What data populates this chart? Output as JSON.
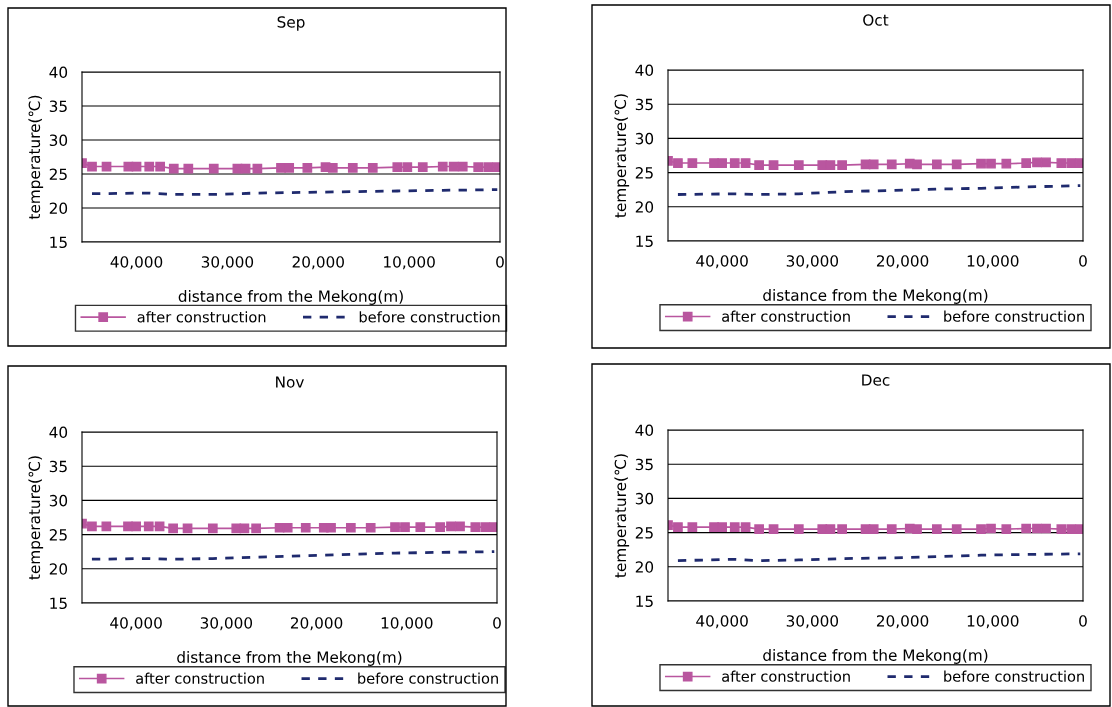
{
  "chart_data": [
    {
      "type": "line",
      "title": "Sep",
      "xlabel": "distance from the Mekong(m)",
      "ylabel": "temperature(℃)",
      "xlim": [
        46000,
        0
      ],
      "xticks": [
        {
          "value": 40000,
          "label": "40,000"
        },
        {
          "value": 30000,
          "label": "30,000"
        },
        {
          "value": 20000,
          "label": "20,000"
        },
        {
          "value": 10000,
          "label": "10,000"
        },
        0
      ],
      "ylim": [
        15,
        40
      ],
      "yticks": [
        15,
        20,
        25,
        30,
        35,
        40
      ],
      "grid": "y",
      "legend": "bottom",
      "series": [
        {
          "name": "after construction",
          "color": "#b9569f",
          "marker": "square",
          "line_style": "solid",
          "x": [
            46000,
            44900,
            43300,
            40900,
            40000,
            38600,
            37400,
            35900,
            34300,
            31500,
            28900,
            28000,
            26700,
            24100,
            23200,
            21200,
            19200,
            18400,
            16200,
            14000,
            11300,
            10200,
            8500,
            6300,
            5100,
            4100,
            2400,
            1300,
            300
          ],
          "values": [
            26.6,
            26.1,
            26.1,
            26.1,
            26.1,
            26.1,
            26.1,
            25.8,
            25.8,
            25.8,
            25.8,
            25.8,
            25.8,
            25.9,
            25.9,
            25.9,
            26.0,
            25.9,
            25.9,
            25.9,
            26.0,
            26.0,
            26.0,
            26.1,
            26.1,
            26.1,
            26.0,
            26.0,
            26.0
          ]
        },
        {
          "name": "before construction",
          "color": "#1f2a6e",
          "marker": "none",
          "line_style": "dashed",
          "x": [
            44900,
            38600,
            35900,
            31500,
            26700,
            21200,
            16200,
            11300,
            6300,
            300
          ],
          "values": [
            22.1,
            22.2,
            22.0,
            22.0,
            22.2,
            22.3,
            22.4,
            22.5,
            22.6,
            22.7
          ]
        }
      ]
    },
    {
      "type": "line",
      "title": "Oct",
      "xlabel": "distance from the Mekong(m)",
      "ylabel": "temperature(℃)",
      "xlim": [
        46000,
        0
      ],
      "xticks": [
        {
          "value": 40000,
          "label": "40,000"
        },
        {
          "value": 30000,
          "label": "30,000"
        },
        {
          "value": 20000,
          "label": "20,000"
        },
        {
          "value": 10000,
          "label": "10,000"
        },
        0
      ],
      "ylim": [
        15,
        40
      ],
      "yticks": [
        15,
        20,
        25,
        30,
        35,
        40
      ],
      "grid": "y",
      "legend": "bottom",
      "series": [
        {
          "name": "after construction",
          "color": "#b9569f",
          "marker": "square",
          "line_style": "solid",
          "x": [
            46000,
            44900,
            43300,
            40900,
            40000,
            38600,
            37400,
            35900,
            34300,
            31500,
            28900,
            28000,
            26700,
            24100,
            23200,
            21200,
            19200,
            18400,
            16200,
            14000,
            11300,
            10200,
            8500,
            6300,
            5100,
            4100,
            2400,
            1300,
            300
          ],
          "values": [
            26.7,
            26.4,
            26.4,
            26.4,
            26.4,
            26.4,
            26.4,
            26.1,
            26.1,
            26.1,
            26.1,
            26.1,
            26.1,
            26.2,
            26.2,
            26.2,
            26.3,
            26.2,
            26.2,
            26.2,
            26.3,
            26.3,
            26.3,
            26.4,
            26.5,
            26.5,
            26.4,
            26.4,
            26.4
          ]
        },
        {
          "name": "before construction",
          "color": "#1f2a6e",
          "marker": "none",
          "line_style": "dashed",
          "x": [
            44900,
            38600,
            35900,
            31500,
            26700,
            21200,
            16200,
            11300,
            6300,
            300
          ],
          "values": [
            21.8,
            21.9,
            21.8,
            21.9,
            22.2,
            22.4,
            22.6,
            22.7,
            22.9,
            23.1
          ]
        }
      ]
    },
    {
      "type": "line",
      "title": "Nov",
      "xlabel": "distance from the Mekong(m)",
      "ylabel": "temperature(℃)",
      "xlim": [
        46000,
        0
      ],
      "xticks": [
        {
          "value": 40000,
          "label": "40,000"
        },
        {
          "value": 30000,
          "label": "30,000"
        },
        {
          "value": 20000,
          "label": "20,000"
        },
        {
          "value": 10000,
          "label": "10,000"
        },
        0
      ],
      "ylim": [
        15,
        40
      ],
      "yticks": [
        15,
        20,
        25,
        30,
        35,
        40
      ],
      "grid": "y",
      "legend": "bottom",
      "series": [
        {
          "name": "after construction",
          "color": "#b9569f",
          "marker": "square",
          "line_style": "solid",
          "x": [
            46000,
            44900,
            43300,
            40900,
            40000,
            38600,
            37400,
            35900,
            34300,
            31500,
            28900,
            28000,
            26700,
            24100,
            23200,
            21200,
            19200,
            18400,
            16200,
            14000,
            11300,
            10200,
            8500,
            6300,
            5100,
            4100,
            2400,
            1300,
            300
          ],
          "values": [
            26.6,
            26.2,
            26.2,
            26.2,
            26.2,
            26.2,
            26.2,
            25.9,
            25.9,
            25.9,
            25.9,
            25.9,
            25.9,
            26.0,
            26.0,
            26.0,
            26.0,
            26.0,
            26.0,
            26.0,
            26.1,
            26.1,
            26.1,
            26.1,
            26.2,
            26.2,
            26.1,
            26.1,
            26.1
          ]
        },
        {
          "name": "before construction",
          "color": "#1f2a6e",
          "marker": "none",
          "line_style": "dashed",
          "x": [
            44900,
            38600,
            35900,
            31500,
            26700,
            21200,
            16200,
            11300,
            6300,
            300
          ],
          "values": [
            21.4,
            21.5,
            21.4,
            21.5,
            21.7,
            21.9,
            22.1,
            22.3,
            22.4,
            22.5
          ]
        }
      ]
    },
    {
      "type": "line",
      "title": "Dec",
      "xlabel": "distance from the Mekong(m)",
      "ylabel": "temperature(℃)",
      "xlim": [
        46000,
        0
      ],
      "xticks": [
        {
          "value": 40000,
          "label": "40,000"
        },
        {
          "value": 30000,
          "label": "30,000"
        },
        {
          "value": 20000,
          "label": "20,000"
        },
        {
          "value": 10000,
          "label": "10,000"
        },
        0
      ],
      "ylim": [
        15,
        40
      ],
      "yticks": [
        15,
        20,
        25,
        30,
        35,
        40
      ],
      "grid": "y",
      "legend": "bottom",
      "series": [
        {
          "name": "after construction",
          "color": "#b9569f",
          "marker": "square",
          "line_style": "solid",
          "x": [
            46000,
            44900,
            43300,
            40900,
            40000,
            38600,
            37400,
            35900,
            34300,
            31500,
            28900,
            28000,
            26700,
            24100,
            23200,
            21200,
            19200,
            18400,
            16200,
            14000,
            11300,
            10200,
            8500,
            6300,
            5100,
            4100,
            2400,
            1300,
            300
          ],
          "values": [
            26.1,
            25.8,
            25.8,
            25.8,
            25.8,
            25.8,
            25.8,
            25.5,
            25.5,
            25.5,
            25.5,
            25.5,
            25.5,
            25.5,
            25.5,
            25.5,
            25.6,
            25.5,
            25.5,
            25.5,
            25.5,
            25.6,
            25.5,
            25.6,
            25.6,
            25.6,
            25.5,
            25.5,
            25.5
          ]
        },
        {
          "name": "before construction",
          "color": "#1f2a6e",
          "marker": "none",
          "line_style": "dashed",
          "x": [
            44900,
            38600,
            35900,
            31500,
            26700,
            21200,
            16200,
            11300,
            6300,
            300
          ],
          "values": [
            20.9,
            21.1,
            20.9,
            21.0,
            21.2,
            21.3,
            21.5,
            21.7,
            21.8,
            21.9
          ]
        }
      ]
    }
  ]
}
